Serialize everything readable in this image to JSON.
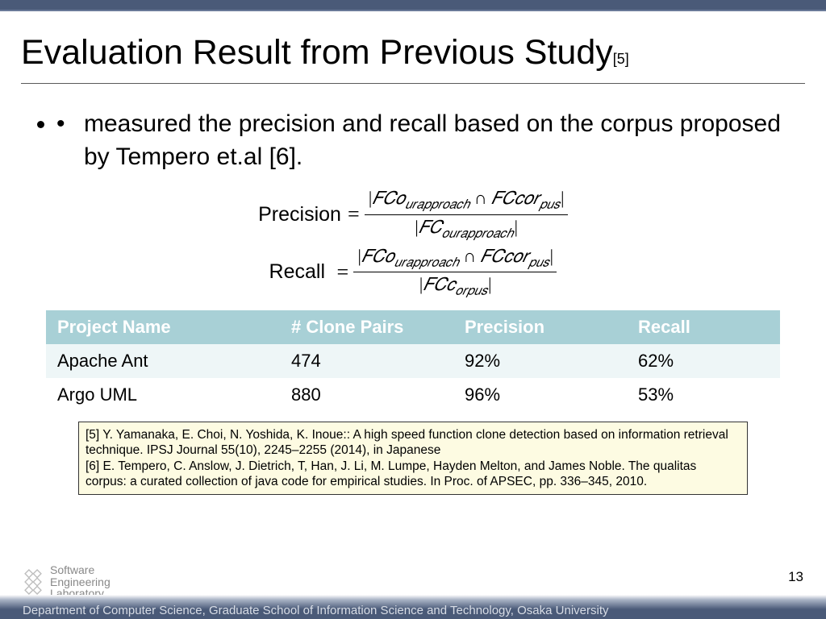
{
  "colors": {
    "top_bar": "#4a5a78",
    "table_header_bg": "#a8d0d6",
    "table_header_text": "#ffffff",
    "table_row_alt_bg": "#eef6f7",
    "refs_bg": "#fdfbe2",
    "refs_border": "#333333",
    "bottom_gradient_start": "#aab4c6",
    "bottom_gradient_end": "#4a5a78",
    "affil_text": "#d8dde6"
  },
  "title": {
    "text": "Evaluation Result from Previous Study",
    "ref": "[5]",
    "fontsize": 43
  },
  "bullet": "measured the precision and recall based on the corpus proposed by Tempero et.al [6].",
  "formulas": {
    "precision": {
      "label": "Precision",
      "numerator": "|𝐹𝐶𝑜<sub class=\"s\">𝑢𝑟𝑎𝑝𝑝𝑟𝑜𝑎𝑐ℎ</sub> ∩ 𝐹𝐶𝑐𝑜𝑟<sub class=\"s\">𝑝𝑢𝑠</sub>|",
      "denominator": "|𝐹𝐶<sub class=\"s\">𝑜𝑢𝑟𝑎𝑝𝑝𝑟𝑜𝑎𝑐ℎ</sub>|"
    },
    "recall": {
      "label": "Recall",
      "numerator": "|𝐹𝐶𝑜<sub class=\"s\">𝑢𝑟𝑎𝑝𝑝𝑟𝑜𝑎𝑐ℎ</sub> ∩ 𝐹𝐶𝑐𝑜𝑟<sub class=\"s\">𝑝𝑢𝑠</sub>|",
      "denominator": "|𝐹𝐶𝑐<sub class=\"s\">𝑜𝑟𝑝𝑢𝑠</sub>|"
    }
  },
  "table": {
    "columns": [
      "Project Name",
      "# Clone Pairs",
      "Precision",
      "Recall"
    ],
    "rows": [
      [
        "Apache Ant",
        "474",
        "92%",
        "62%"
      ],
      [
        "Argo UML",
        "880",
        "96%",
        "53%"
      ]
    ],
    "header_fontsize": 22,
    "cell_fontsize": 22
  },
  "references": {
    "r5": "[5] Y. Yamanaka, E. Choi, N. Yoshida, K. Inoue:: A high speed function clone detection based on information retrieval technique. IPSJ Journal 55(10), 2245–2255 (2014), in Japanese",
    "r6": "[6]  E. Tempero, C. Anslow, J. Dietrich, T, Han, J. Li, M. Lumpe, Hayden Melton, and James Noble. The qualitas corpus: a curated collection of java code for empirical studies. In Proc. of APSEC, pp. 336–345, 2010."
  },
  "page_number": "13",
  "logo_text_line1": "Software",
  "logo_text_line2": "Engineering",
  "logo_text_line3": "Laboratory",
  "affiliation": "Department of Computer Science, Graduate School of Information Science and Technology, Osaka University"
}
